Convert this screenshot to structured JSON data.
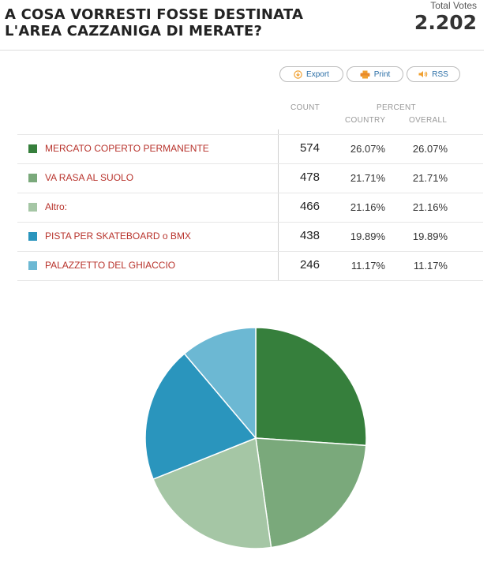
{
  "title_line1": "A COSA VORRESTI FOSSE DESTINATA",
  "title_line2": "L'AREA CAZZANIGA DI MERATE?",
  "total_votes_label": "Total Votes",
  "total_votes_value": "2.202",
  "buttons": {
    "export": "Export",
    "print": "Print",
    "rss": "RSS"
  },
  "headers": {
    "count": "COUNT",
    "percent": "PERCENT",
    "country": "COUNTRY",
    "overall": "OVERALL"
  },
  "rows": [
    {
      "label": "MERCATO COPERTO PERMANENTE",
      "count": "574",
      "country": "26.07%",
      "overall": "26.07%",
      "color": "#367f3c"
    },
    {
      "label": "VA RASA AL SUOLO",
      "count": "478",
      "country": "21.71%",
      "overall": "21.71%",
      "color": "#7aa97b"
    },
    {
      "label": "Altro:",
      "count": "466",
      "country": "21.16%",
      "overall": "21.16%",
      "color": "#a5c6a5"
    },
    {
      "label": "PISTA PER SKATEBOARD o BMX",
      "count": "438",
      "country": "19.89%",
      "overall": "19.89%",
      "color": "#2a95bd"
    },
    {
      "label": "PALAZZETTO DEL GHIACCIO",
      "count": "246",
      "country": "11.17%",
      "overall": "11.17%",
      "color": "#6cb8d3"
    }
  ],
  "chart_data": {
    "type": "pie",
    "categories": [
      "MERCATO COPERTO PERMANENTE",
      "VA RASA AL SUOLO",
      "Altro:",
      "PISTA PER SKATEBOARD o BMX",
      "PALAZZETTO DEL GHIACCIO"
    ],
    "values": [
      574,
      478,
      466,
      438,
      246
    ],
    "colors": [
      "#367f3c",
      "#7aa97b",
      "#a5c6a5",
      "#2a95bd",
      "#6cb8d3"
    ],
    "start": "12 o'clock",
    "direction": "clockwise"
  }
}
